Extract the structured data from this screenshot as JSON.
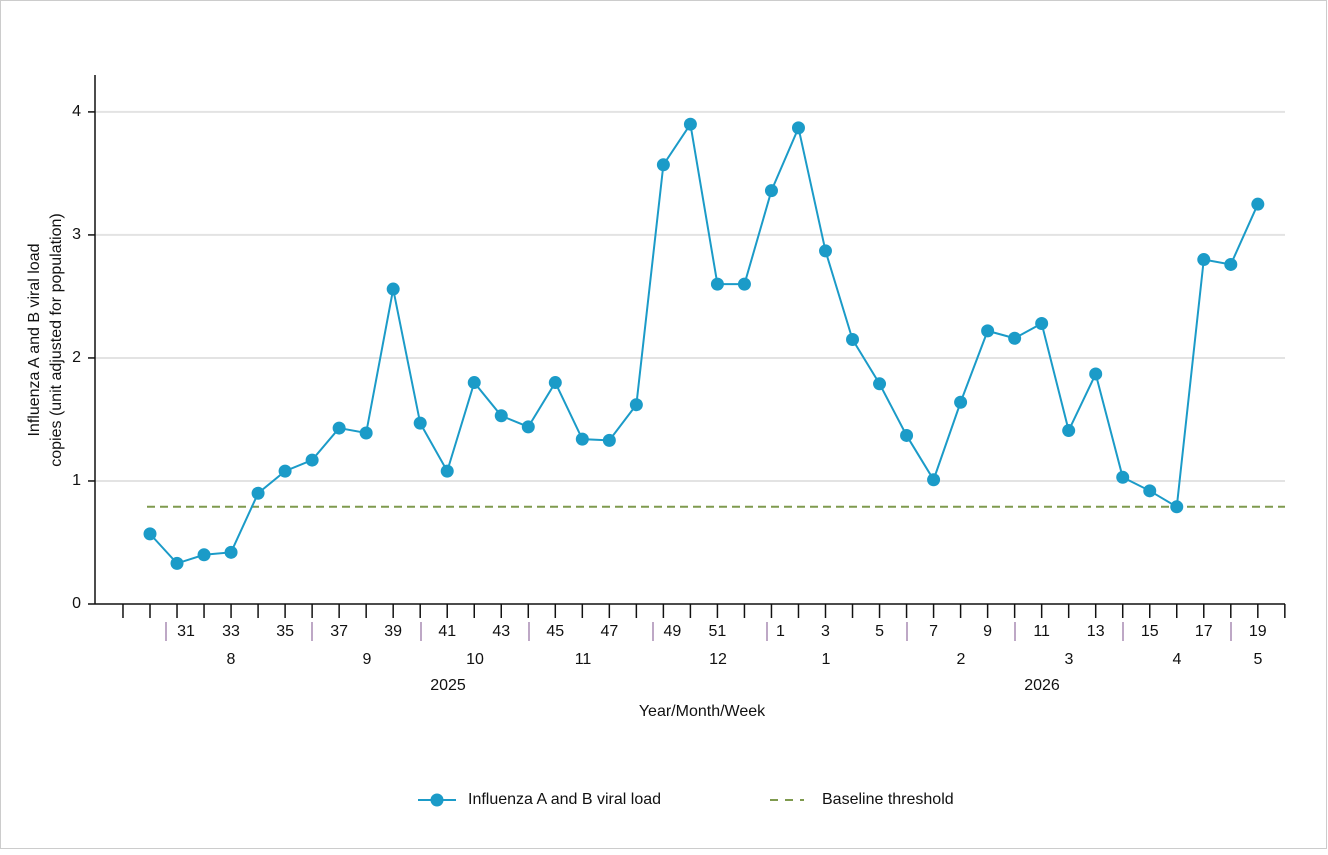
{
  "chart_data": {
    "type": "line",
    "ylabel": [
      "Influenza A and B viral load",
      "copies (unit adjusted for population)"
    ],
    "xlabel": "Year/Month/Week",
    "categories": [
      null,
      "31",
      null,
      "33",
      null,
      "35",
      null,
      "37",
      null,
      "39",
      null,
      "41",
      null,
      "43",
      null,
      "45",
      null,
      "47",
      null,
      "49",
      null,
      "51",
      null,
      "1",
      null,
      "3",
      null,
      "5",
      null,
      "7",
      null,
      "9",
      null,
      "11",
      null,
      "13",
      null,
      "15",
      null,
      "17",
      null,
      "19"
    ],
    "months": [
      "8",
      "9",
      "10",
      "11",
      "12",
      "1",
      "2",
      "3",
      "4",
      "5"
    ],
    "years": [
      "2025",
      "2026"
    ],
    "series": [
      {
        "name": "Influenza A and B viral load",
        "color": "#1b9bc8",
        "values": [
          0.57,
          0.33,
          0.4,
          0.42,
          0.9,
          1.08,
          1.17,
          1.43,
          1.39,
          2.56,
          1.47,
          1.08,
          1.8,
          1.53,
          1.44,
          1.8,
          1.34,
          1.33,
          1.62,
          3.57,
          3.9,
          2.6,
          2.6,
          3.36,
          3.87,
          2.87,
          2.15,
          1.79,
          1.37,
          1.01,
          1.64,
          2.22,
          2.16,
          2.28,
          1.41,
          1.87,
          1.03,
          0.92,
          0.79,
          2.8,
          2.76,
          3.25
        ]
      }
    ],
    "baseline": {
      "name": "Baseline threshold",
      "color": "#7f9a4e",
      "value": 0.79
    },
    "ylim": [
      0,
      4.3
    ],
    "yticks": [
      0,
      1,
      2,
      3,
      4
    ],
    "grid": true
  }
}
